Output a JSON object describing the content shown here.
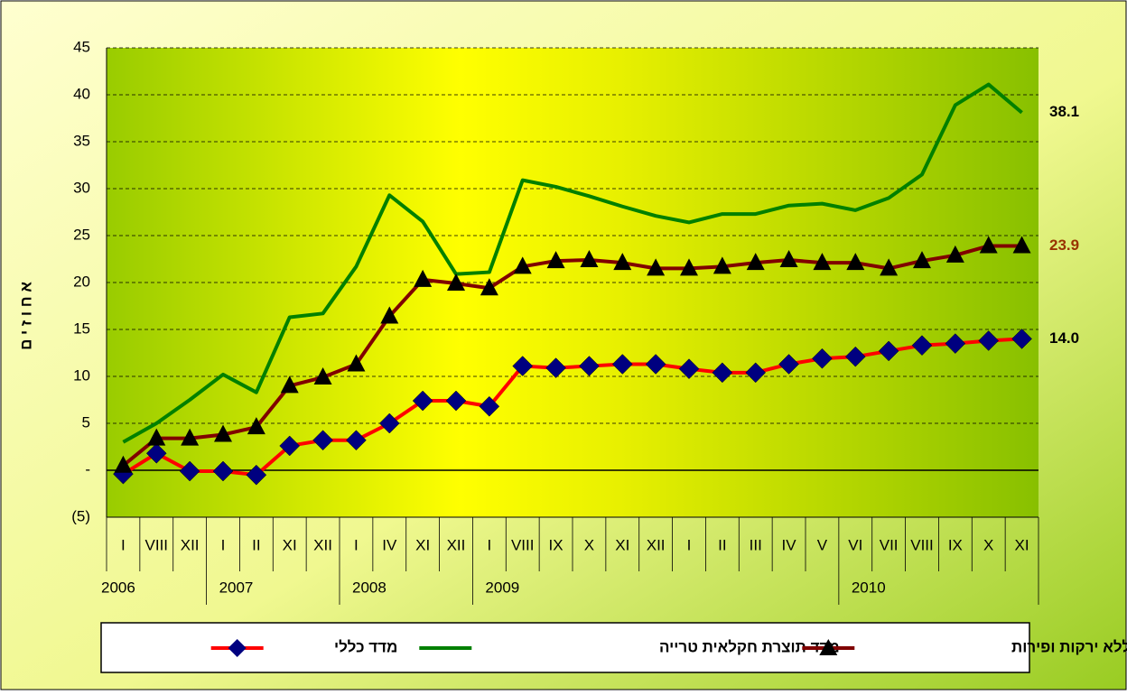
{
  "chart_data": {
    "type": "line",
    "y_axis_label": "א ח ו ז י ם",
    "categories": [
      "I",
      "VIII",
      "XII",
      "I",
      "II",
      "XI",
      "XII",
      "I",
      "IV",
      "XI",
      "XII",
      "I",
      "VIII",
      "IX",
      "X",
      "XI",
      "XII",
      "I",
      "II",
      "III",
      "IV",
      "V",
      "VI",
      "VII",
      "VIII",
      "IX",
      "X",
      "XI"
    ],
    "year_categories": [
      "2006",
      null,
      null,
      "2007",
      null,
      null,
      null,
      "2008",
      null,
      null,
      null,
      "2009",
      null,
      null,
      null,
      null,
      null,
      null,
      null,
      null,
      null,
      null,
      "2010",
      null,
      null,
      null,
      null,
      null
    ],
    "ylim": [
      -5,
      45
    ],
    "yticks": [
      {
        "value": -5,
        "label": "(5)"
      },
      {
        "value": 0,
        "label": "-"
      },
      5,
      10,
      15,
      20,
      25,
      30,
      35,
      40,
      45
    ],
    "grid": true,
    "series": [
      {
        "name": "מדד כללי",
        "color": "#ff0000",
        "marker": "diamond",
        "marker_color": "#000080",
        "label_color": "#000000",
        "values": [
          -0.4,
          1.8,
          -0.1,
          -0.1,
          -0.5,
          2.6,
          3.2,
          3.2,
          5.0,
          7.4,
          7.4,
          6.8,
          11.1,
          10.9,
          11.1,
          11.3,
          11.3,
          10.8,
          10.4,
          10.4,
          11.3,
          11.9,
          12.1,
          12.7,
          13.3,
          13.5,
          13.8,
          14.0
        ],
        "value_labels": [
          null,
          null,
          null,
          null,
          null,
          null,
          null,
          null,
          null,
          null,
          null,
          null,
          null,
          null,
          null,
          null,
          null,
          null,
          null,
          null,
          null,
          null,
          null,
          null,
          null,
          null,
          null,
          "14.0"
        ]
      },
      {
        "name": "מדד תוצרת חקלאית טרייה",
        "color": "#008000",
        "marker": "none",
        "marker_color": "#008000",
        "label_color": "#000000",
        "values": [
          3.0,
          5.0,
          7.5,
          10.2,
          8.3,
          16.3,
          16.7,
          21.7,
          29.3,
          26.5,
          20.9,
          21.1,
          30.9,
          30.2,
          29.2,
          28.1,
          27.1,
          26.4,
          27.3,
          27.3,
          28.2,
          28.4,
          27.7,
          29.0,
          31.5,
          38.9,
          41.1,
          38.1
        ],
        "value_labels": [
          null,
          null,
          null,
          null,
          null,
          null,
          null,
          null,
          null,
          null,
          null,
          null,
          null,
          null,
          null,
          null,
          null,
          null,
          null,
          null,
          null,
          null,
          null,
          null,
          null,
          null,
          null,
          "38.1"
        ]
      },
      {
        "name": "מזון ללא ירקות ופירות",
        "color": "#800000",
        "marker": "triangle",
        "marker_color": "#000000",
        "label_color": "#993300",
        "values": [
          0.5,
          3.4,
          3.4,
          3.8,
          4.6,
          9.0,
          9.9,
          11.3,
          16.4,
          20.3,
          19.9,
          19.4,
          21.7,
          22.3,
          22.4,
          22.1,
          21.5,
          21.5,
          21.7,
          22.1,
          22.4,
          22.1,
          22.1,
          21.5,
          22.3,
          22.9,
          23.9,
          23.9
        ],
        "value_labels": [
          null,
          null,
          null,
          null,
          null,
          null,
          null,
          null,
          null,
          null,
          null,
          null,
          null,
          null,
          null,
          null,
          null,
          null,
          null,
          null,
          null,
          null,
          null,
          null,
          null,
          null,
          null,
          "23.9"
        ]
      }
    ]
  }
}
